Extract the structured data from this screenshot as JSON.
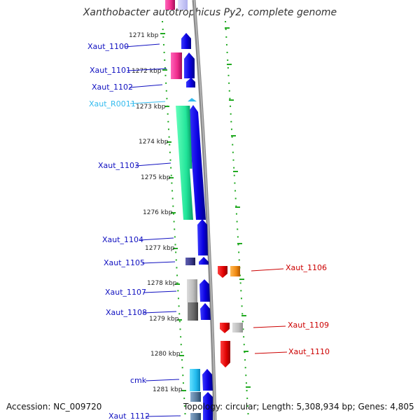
{
  "title": "Xanthobacter autotrophicus Py2, complete genome",
  "footer": {
    "accession": "Accession: NC_009720",
    "topology": "Topology: circular; Length: 5,308,934 bp; Genes: 4,805"
  },
  "ticks": [
    "1271 kbp",
    "1272 kbp",
    "1273 kbp",
    "1274 kbp",
    "1275 kbp",
    "1276 kbp",
    "1277 kbp",
    "1278 kbp",
    "1279 kbp",
    "1280 kbp",
    "1281 kbp"
  ],
  "left_genes": [
    "Xaut_1100",
    "Xaut_1101",
    "Xaut_1102",
    "Xaut_R0011",
    "Xaut_1103",
    "Xaut_1104",
    "Xaut_1105",
    "Xaut_1107",
    "Xaut_1108",
    "cmk",
    "Xaut_1112"
  ],
  "right_genes": [
    "Xaut_1106",
    "Xaut_1109",
    "Xaut_1110"
  ],
  "colors": {
    "forward": "#0a00e0",
    "reverse": "#ee0000",
    "label_left": "#1010c0",
    "label_right": "#cc0000",
    "rna": "#33bbee",
    "ruler": "#22aa22"
  }
}
